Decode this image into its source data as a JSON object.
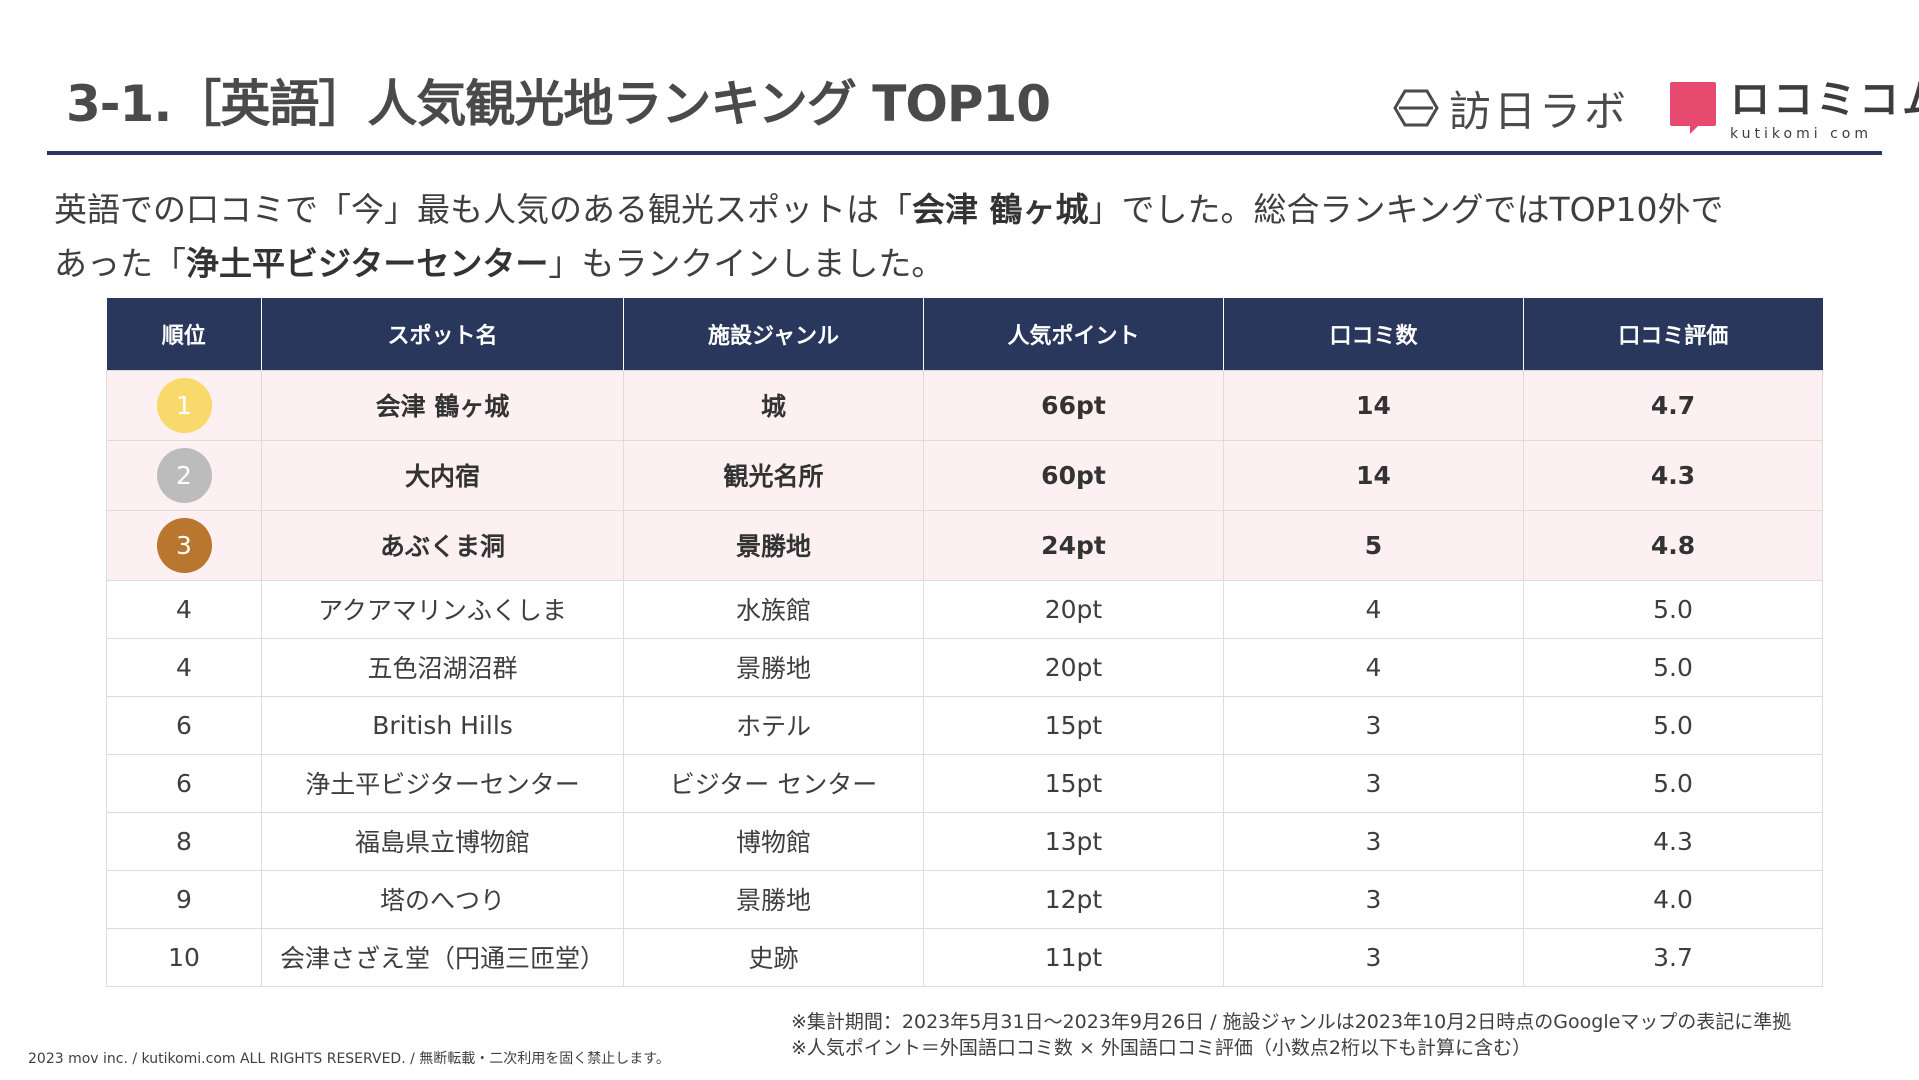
{
  "title": "3-1.［英語］人気観光地ランキング TOP10",
  "logos": {
    "houjin_text": "訪日ラボ",
    "kutikomi_kana": "ロコミコム",
    "kutikomi_roman": "kutikomi com",
    "kutikomi_color": "#e64a6e"
  },
  "lead": {
    "part1": "英語での口コミで「今」最も人気のある観光スポットは「",
    "spot1": "会津 鶴ヶ城",
    "part2": "」でした。総合ランキングではTOP10外で",
    "part3": "あった「",
    "spot2": "浄土平ビジターセンター",
    "part4": "」もランクインしました。"
  },
  "table": {
    "headers": [
      "順位",
      "スポット名",
      "施設ジャンル",
      "人気ポイント",
      "口コミ数",
      "口コミ評価"
    ],
    "rows": [
      {
        "rank": "1",
        "spot": "会津 鶴ヶ城",
        "genre": "城",
        "points": "66pt",
        "count": "14",
        "rating": "4.7"
      },
      {
        "rank": "2",
        "spot": "大内宿",
        "genre": "観光名所",
        "points": "60pt",
        "count": "14",
        "rating": "4.3"
      },
      {
        "rank": "3",
        "spot": "あぶくま洞",
        "genre": "景勝地",
        "points": "24pt",
        "count": "5",
        "rating": "4.8"
      },
      {
        "rank": "4",
        "spot": "アクアマリンふくしま",
        "genre": "水族館",
        "points": "20pt",
        "count": "4",
        "rating": "5.0"
      },
      {
        "rank": "4",
        "spot": "五色沼湖沼群",
        "genre": "景勝地",
        "points": "20pt",
        "count": "4",
        "rating": "5.0"
      },
      {
        "rank": "6",
        "spot": "British Hills",
        "genre": "ホテル",
        "points": "15pt",
        "count": "3",
        "rating": "5.0"
      },
      {
        "rank": "6",
        "spot": "浄土平ビジターセンター",
        "genre": "ビジター センター",
        "points": "15pt",
        "count": "3",
        "rating": "5.0"
      },
      {
        "rank": "8",
        "spot": "福島県立博物館",
        "genre": "博物館",
        "points": "13pt",
        "count": "3",
        "rating": "4.3"
      },
      {
        "rank": "9",
        "spot": "塔のへつり",
        "genre": "景勝地",
        "points": "12pt",
        "count": "3",
        "rating": "4.0"
      },
      {
        "rank": "10",
        "spot": "会津さざえ堂（円通三匝堂）",
        "genre": "史跡",
        "points": "11pt",
        "count": "3",
        "rating": "3.7"
      }
    ],
    "medal_colors": [
      "#f8d96b",
      "#bcbcbc",
      "#b8762f"
    ],
    "header_color": "#28375b",
    "highlight_color": "#fdf0f3"
  },
  "notes": {
    "line1": "※集計期間：2023年5月31日〜2023年9月26日 / 施設ジャンルは2023年10月2日時点のGoogleマップの表記に準拠",
    "line2": "※人気ポイント＝外国語口コミ数 × 外国語口コミ評価（小数点2桁以下も計算に含む）"
  },
  "copyright": "2023 mov inc. / kutikomi.com ALL RIGHTS RESERVED. / 無断転載・二次利用を固く禁止します。"
}
